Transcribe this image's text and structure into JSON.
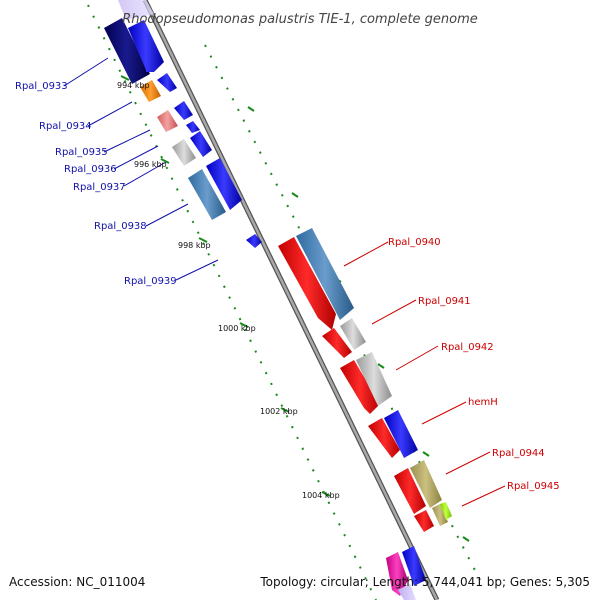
{
  "title": "Rhodopseudomonas palustris TIE-1, complete genome",
  "footer": {
    "accession": "Accession: NC_011004",
    "topology": "Topology: circular; Length: 5,744,041 bp; Genes: 5,305"
  },
  "colors": {
    "left_label": "#1010aa",
    "right_label": "#cc0000",
    "backbone": "#888888",
    "tick": "#1a8a1a"
  },
  "ticks": [
    "994 kbp",
    "996 kbp",
    "998 kbp",
    "1000 kbp",
    "1002 kbp",
    "1004 kbp"
  ],
  "left_labels": [
    "Rpal_0933",
    "Rpal_0934",
    "Rpal_0935",
    "Rpal_0936",
    "Rpal_0937",
    "Rpal_0938",
    "Rpal_0939"
  ],
  "right_labels": [
    "Rpal_0940",
    "Rpal_0941",
    "Rpal_0942",
    "hemH",
    "Rpal_0944",
    "Rpal_0945"
  ]
}
